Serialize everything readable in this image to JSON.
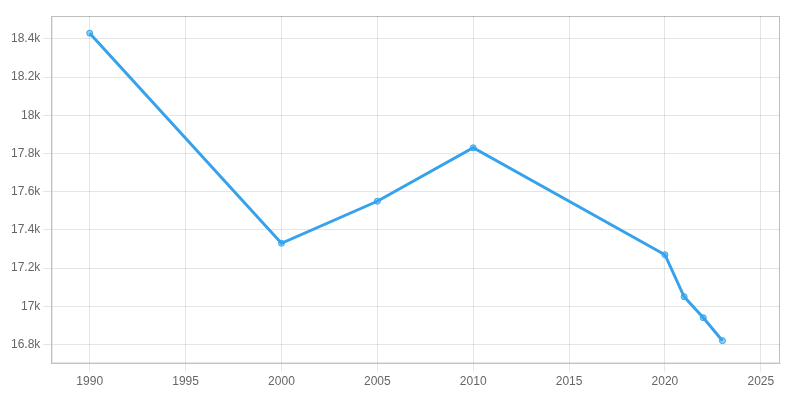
{
  "chart_data": {
    "type": "line",
    "x": [
      1990,
      2000,
      2005,
      2010,
      2020,
      2021,
      2022,
      2023
    ],
    "values": [
      18430,
      17330,
      17550,
      17830,
      17270,
      17050,
      16940,
      16820
    ],
    "marker": "circle",
    "line_style": "solid",
    "xlim": [
      1988,
      2026
    ],
    "xticks": [
      1990,
      1995,
      2000,
      2005,
      2010,
      2015,
      2020,
      2025
    ],
    "ylim": [
      16700,
      18520
    ],
    "yticks": [
      {
        "value": 16800,
        "label": "16.8k"
      },
      {
        "value": 17000,
        "label": "17k"
      },
      {
        "value": 17200,
        "label": "17.2k"
      },
      {
        "value": 17400,
        "label": "17.4k"
      },
      {
        "value": 17600,
        "label": "17.6k"
      },
      {
        "value": 17800,
        "label": "17.8k"
      },
      {
        "value": 18000,
        "label": "18k"
      },
      {
        "value": 18200,
        "label": "18.2k"
      },
      {
        "value": 18400,
        "label": "18.4k"
      }
    ],
    "grid": true
  }
}
